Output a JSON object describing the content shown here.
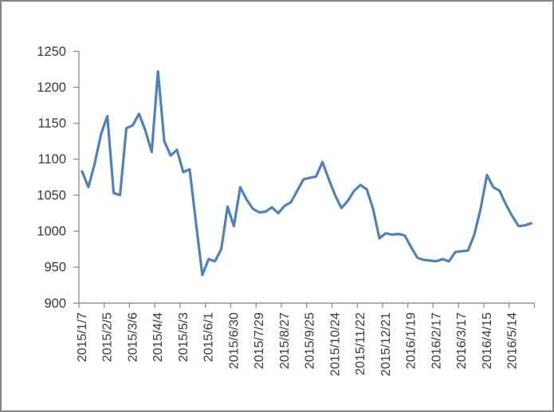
{
  "chart_data": {
    "type": "line",
    "title": "",
    "xlabel": "",
    "ylabel": "",
    "x_tick_labels": [
      "2015/1/7",
      "2015/2/5",
      "2015/3/6",
      "2015/4/4",
      "2015/5/3",
      "2015/6/1",
      "2015/6/30",
      "2015/7/29",
      "2015/8/27",
      "2015/9/25",
      "2015/10/24",
      "2015/11/22",
      "2015/12/21",
      "2016/1/19",
      "2016/2/17",
      "2016/3/17",
      "2016/4/15",
      "2016/5/14"
    ],
    "label_interval": 4,
    "values": [
      1083,
      1061,
      1094,
      1135,
      1160,
      1053,
      1050,
      1143,
      1147,
      1163,
      1140,
      1110,
      1222,
      1125,
      1105,
      1113,
      1082,
      1086,
      1012,
      939,
      961,
      958,
      975,
      1034,
      1007,
      1061,
      1044,
      1031,
      1026,
      1027,
      1033,
      1025,
      1035,
      1040,
      1056,
      1072,
      1074,
      1076,
      1096,
      1072,
      1050,
      1032,
      1042,
      1056,
      1064,
      1058,
      1031,
      990,
      997,
      995,
      996,
      994,
      978,
      963,
      960,
      959,
      958,
      961,
      958,
      971,
      972,
      973,
      995,
      1031,
      1078,
      1061,
      1056,
      1037,
      1021,
      1007,
      1008,
      1011
    ],
    "yticks": [
      900,
      950,
      1000,
      1050,
      1100,
      1150,
      1200,
      1250
    ],
    "ylim": [
      900,
      1250
    ],
    "grid": false,
    "legend_position": "none"
  },
  "style": {
    "line_color": "#4F81BD",
    "axis_color": "#8C8C8C",
    "tick_label_color": "#3A3A3A",
    "frame_border_color": "#848484",
    "background_color": "#FFFFFF"
  }
}
